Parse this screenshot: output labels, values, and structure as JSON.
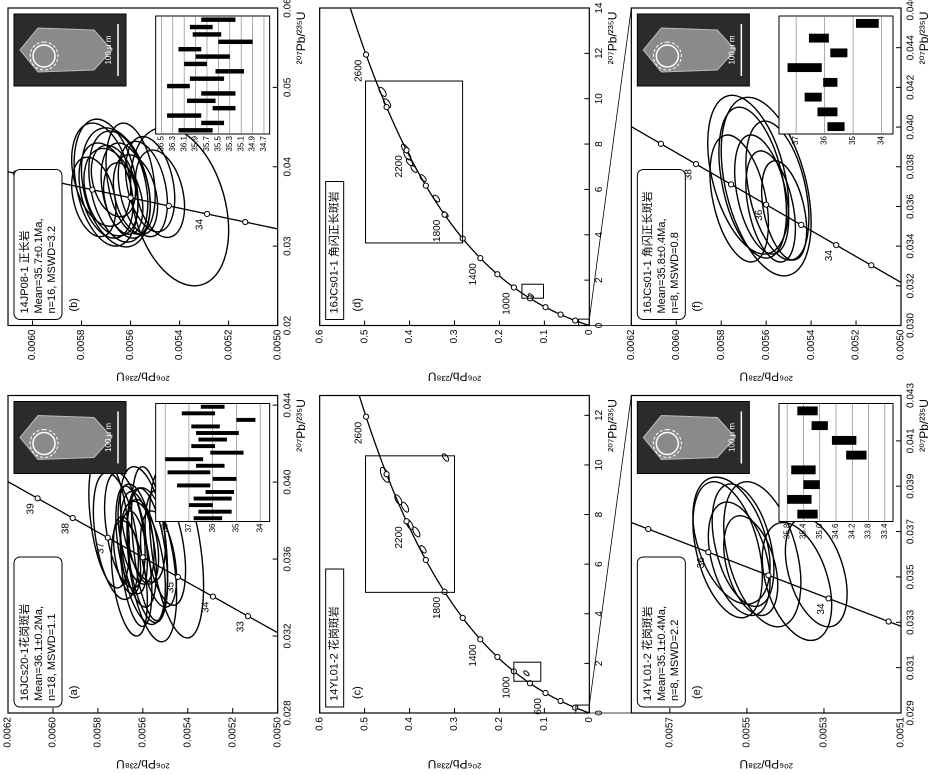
{
  "chart_data": [
    {
      "type": "concordia",
      "panel_label": "(a)",
      "sample": "16JCs20-1花岗斑岩",
      "result": [
        "Mean=36.1±0.2Ma,",
        "n=18, MSWD=1.1"
      ],
      "x_label": "²⁰⁷Pb/²³⁵U",
      "y_label": "²⁰⁶Pb/²³⁸U",
      "xlim": [
        0.028,
        0.0445
      ],
      "xticks": [
        0.028,
        0.032,
        0.036,
        {
          "value": 0.04,
          "label": "0.040"
        },
        0.044
      ],
      "ylim": [
        0.005,
        0.0062
      ],
      "yticks": [
        {
          "value": 0.005,
          "label": "0.0050"
        },
        0.0052,
        0.0054,
        0.0056,
        0.0058,
        {
          "value": 0.006,
          "label": "0.0060"
        },
        0.0062
      ],
      "concordia_markers": [
        33,
        34,
        35,
        36,
        37,
        38,
        39
      ],
      "concordia_labels": [
        33,
        34,
        35,
        37,
        38,
        39
      ],
      "ellipses": [
        {
          "x": 0.0365,
          "y": 0.00562,
          "x_err": 0.003,
          "y_err": 8e-05,
          "rho": 0.4
        },
        {
          "x": 0.0362,
          "y": 0.00558,
          "x_err": 0.0035,
          "y_err": 9e-05,
          "rho": 0.4
        },
        {
          "x": 0.037,
          "y": 0.00565,
          "x_err": 0.0028,
          "y_err": 7e-05,
          "rho": 0.4
        },
        {
          "x": 0.0358,
          "y": 0.0056,
          "x_err": 0.0032,
          "y_err": 0.0001,
          "rho": 0.4
        },
        {
          "x": 0.0368,
          "y": 0.00557,
          "x_err": 0.004,
          "y_err": 8e-05,
          "rho": 0.4
        },
        {
          "x": 0.0375,
          "y": 0.00568,
          "x_err": 0.003,
          "y_err": 9e-05,
          "rho": 0.4
        },
        {
          "x": 0.036,
          "y": 0.00553,
          "x_err": 0.0025,
          "y_err": 8e-05,
          "rho": 0.4
        },
        {
          "x": 0.0372,
          "y": 0.00572,
          "x_err": 0.0033,
          "y_err": 0.0001,
          "rho": 0.4
        },
        {
          "x": 0.0355,
          "y": 0.00563,
          "x_err": 0.003,
          "y_err": 7e-05,
          "rho": 0.4
        },
        {
          "x": 0.038,
          "y": 0.00575,
          "x_err": 0.0035,
          "y_err": 9e-05,
          "rho": 0.4
        },
        {
          "x": 0.0366,
          "y": 0.0055,
          "x_err": 0.003,
          "y_err": 9e-05,
          "rho": 0.4
        },
        {
          "x": 0.0362,
          "y": 0.00567,
          "x_err": 0.002,
          "y_err": 6e-05,
          "rho": 0.4
        },
        {
          "x": 0.0369,
          "y": 0.0056,
          "x_err": 0.0022,
          "y_err": 7e-05,
          "rho": 0.4
        },
        {
          "x": 0.0357,
          "y": 0.00556,
          "x_err": 0.004,
          "y_err": 0.00011,
          "rho": 0.4
        },
        {
          "x": 0.0373,
          "y": 0.00563,
          "x_err": 0.0026,
          "y_err": 8e-05,
          "rho": 0.4
        },
        {
          "x": 0.0364,
          "y": 0.00545,
          "x_err": 0.0045,
          "y_err": 0.00012,
          "rho": 0.4
        },
        {
          "x": 0.035,
          "y": 0.00566,
          "x_err": 0.003,
          "y_err": 8e-05,
          "rho": 0.4
        },
        {
          "x": 0.0378,
          "y": 0.0056,
          "x_err": 0.003,
          "y_err": 0.0001,
          "rho": 0.4
        }
      ],
      "scale_label": "100 μ m",
      "inset": {
        "ylim": [
          33.6,
          38.4
        ],
        "yticks": [
          34,
          35,
          36,
          37,
          38
        ],
        "ages": [
          36.2,
          35.9,
          36.5,
          36.0,
          35.7,
          36.8,
          35.5,
          37.0,
          36.1,
          37.2,
          35.4,
          36.4,
          36.0,
          35.8,
          36.3,
          34.6,
          36.6,
          36.0
        ],
        "errors": [
          0.6,
          0.7,
          0.5,
          0.8,
          0.6,
          0.7,
          0.5,
          0.9,
          0.6,
          0.8,
          0.7,
          0.5,
          0.6,
          0.9,
          0.6,
          0.4,
          0.7,
          0.5
        ]
      }
    },
    {
      "type": "concordia",
      "panel_label": "(b)",
      "sample": "14JP08-1 正长岩",
      "result": [
        "Mean=35.7±0.1Ma,",
        "n=16, MSWD=3.2"
      ],
      "x_label": "²⁰⁷Pb/²³⁵U",
      "y_label": "²⁰⁶Pb/²³⁸U",
      "xlim": [
        0.02,
        0.06
      ],
      "xticks": [
        0.02,
        0.03,
        0.04,
        0.05,
        0.06
      ],
      "ylim": [
        0.005,
        0.0061
      ],
      "yticks": [
        {
          "value": 0.005,
          "label": "0.0050"
        },
        0.0052,
        0.0054,
        0.0056,
        0.0058,
        {
          "value": 0.006,
          "label": "0.0060"
        }
      ],
      "concordia_markers": [
        33,
        34,
        35,
        36,
        37,
        38,
        39
      ],
      "concordia_labels": [
        34,
        38
      ],
      "ellipses": [
        {
          "x": 0.037,
          "y": 0.00562,
          "x_err": 0.006,
          "y_err": 0.0001,
          "rho": 0.3
        },
        {
          "x": 0.0375,
          "y": 0.00565,
          "x_err": 0.007,
          "y_err": 0.00012,
          "rho": 0.3
        },
        {
          "x": 0.0365,
          "y": 0.00558,
          "x_err": 0.005,
          "y_err": 9e-05,
          "rho": 0.3
        },
        {
          "x": 0.038,
          "y": 0.0057,
          "x_err": 0.008,
          "y_err": 0.00013,
          "rho": 0.3
        },
        {
          "x": 0.0372,
          "y": 0.00555,
          "x_err": 0.006,
          "y_err": 0.0001,
          "rho": 0.3
        },
        {
          "x": 0.0368,
          "y": 0.00568,
          "x_err": 0.0055,
          "y_err": 0.00011,
          "rho": 0.3
        },
        {
          "x": 0.0385,
          "y": 0.0056,
          "x_err": 0.007,
          "y_err": 0.0001,
          "rho": 0.3
        },
        {
          "x": 0.036,
          "y": 0.00563,
          "x_err": 0.0045,
          "y_err": 8e-05,
          "rho": 0.3
        },
        {
          "x": 0.039,
          "y": 0.00572,
          "x_err": 0.0065,
          "y_err": 0.00012,
          "rho": 0.3
        },
        {
          "x": 0.0378,
          "y": 0.00552,
          "x_err": 0.006,
          "y_err": 0.0001,
          "rho": 0.3
        },
        {
          "x": 0.0362,
          "y": 0.00575,
          "x_err": 0.005,
          "y_err": 9e-05,
          "rho": 0.3
        },
        {
          "x": 0.0374,
          "y": 0.00566,
          "x_err": 0.0075,
          "y_err": 0.00014,
          "rho": 0.3
        },
        {
          "x": 0.0366,
          "y": 0.00548,
          "x_err": 0.0055,
          "y_err": 0.0001,
          "rho": 0.3
        },
        {
          "x": 0.0382,
          "y": 0.00567,
          "x_err": 0.0045,
          "y_err": 9e-05,
          "rho": 0.3
        },
        {
          "x": 0.037,
          "y": 0.0057,
          "x_err": 0.006,
          "y_err": 0.00011,
          "rho": 0.3
        },
        {
          "x": 0.035,
          "y": 0.0054,
          "x_err": 0.01,
          "y_err": 0.0002,
          "rho": 0.3
        }
      ],
      "scale_label": "100 μ m",
      "inset": {
        "ylim": [
          34.6,
          36.6
        ],
        "yticks": [
          34.7,
          34.9,
          35.1,
          35.3,
          35.5,
          35.7,
          35.9,
          36.1,
          36.3,
          36.5
        ],
        "ages": [
          35.9,
          35.6,
          36.1,
          35.4,
          35.8,
          35.5,
          36.2,
          35.7,
          35.3,
          35.9,
          35.6,
          36.0,
          35.2,
          35.7,
          35.8,
          35.5
        ],
        "errors": [
          0.3,
          0.2,
          0.3,
          0.2,
          0.25,
          0.3,
          0.2,
          0.3,
          0.25,
          0.2,
          0.3,
          0.2,
          0.3,
          0.25,
          0.2,
          0.3
        ]
      }
    },
    {
      "type": "concordia",
      "panel_label": "(c)",
      "sample": "14YL01-2 花岗斑岩",
      "x_label": "²⁰⁷Pb/²³⁵U",
      "y_label": "²⁰⁶Pb/²³⁸U",
      "xlim": [
        0,
        12.8
      ],
      "xticks": [
        0,
        2,
        4,
        6,
        8,
        10,
        12
      ],
      "ylim": [
        0,
        0.6
      ],
      "yticks": [
        0,
        0.1,
        0.2,
        0.3,
        0.4,
        0.5,
        0.6
      ],
      "concordia_markers": [
        200,
        400,
        600,
        800,
        1000,
        1200,
        1400,
        1600,
        1800,
        2000,
        2200,
        2400,
        2600
      ],
      "concordia_labels": [
        600,
        1000,
        1400,
        1800,
        2200,
        2600
      ],
      "ellipses": [
        {
          "x": 9.6,
          "y": 0.455,
          "x_err": 0.3,
          "y_err": 0.01,
          "rho": 0.6
        },
        {
          "x": 8.6,
          "y": 0.425,
          "x_err": 0.2,
          "y_err": 0.008,
          "rho": 0.6
        },
        {
          "x": 8.3,
          "y": 0.41,
          "x_err": 0.2,
          "y_err": 0.008,
          "rho": 0.6
        },
        {
          "x": 7.6,
          "y": 0.4,
          "x_err": 0.2,
          "y_err": 0.008,
          "rho": 0.6
        },
        {
          "x": 7.3,
          "y": 0.385,
          "x_err": 0.2,
          "y_err": 0.008,
          "rho": 0.6
        },
        {
          "x": 6.6,
          "y": 0.37,
          "x_err": 0.15,
          "y_err": 0.007,
          "rho": 0.6
        },
        {
          "x": 10.3,
          "y": 0.32,
          "x_err": 0.15,
          "y_err": 0.007,
          "rho": 0.6
        },
        {
          "x": 1.6,
          "y": 0.14,
          "x_err": 0.1,
          "y_err": 0.006,
          "rho": 0.6
        }
      ]
    },
    {
      "type": "concordia",
      "panel_label": "(d)",
      "sample": "16JCs01-1 角闪正长斑岩",
      "x_label": "²⁰⁷Pb/²³⁵U",
      "y_label": "²⁰⁶Pb/²³⁸U",
      "xlim": [
        0,
        14
      ],
      "xticks": [
        0,
        2,
        4,
        6,
        8,
        10,
        12,
        14
      ],
      "ylim": [
        0,
        0.6
      ],
      "yticks": [
        0,
        0.1,
        0.2,
        0.3,
        0.4,
        0.5,
        0.6
      ],
      "concordia_markers": [
        200,
        400,
        600,
        800,
        1000,
        1200,
        1400,
        1600,
        1800,
        2000,
        2200,
        2400,
        2600
      ],
      "concordia_labels": [
        1000,
        1400,
        1800,
        2200,
        2600
      ],
      "ellipses": [
        {
          "x": 10.3,
          "y": 0.46,
          "x_err": 0.2,
          "y_err": 0.008,
          "rho": 0.6
        },
        {
          "x": 9.8,
          "y": 0.45,
          "x_err": 0.2,
          "y_err": 0.008,
          "rho": 0.6
        },
        {
          "x": 7.8,
          "y": 0.41,
          "x_err": 0.2,
          "y_err": 0.008,
          "rho": 0.6
        },
        {
          "x": 7.5,
          "y": 0.405,
          "x_err": 0.2,
          "y_err": 0.008,
          "rho": 0.6
        },
        {
          "x": 7.2,
          "y": 0.4,
          "x_err": 0.15,
          "y_err": 0.007,
          "rho": 0.6
        },
        {
          "x": 6.9,
          "y": 0.39,
          "x_err": 0.15,
          "y_err": 0.007,
          "rho": 0.6
        },
        {
          "x": 6.5,
          "y": 0.37,
          "x_err": 0.15,
          "y_err": 0.007,
          "rho": 0.6
        },
        {
          "x": 5.6,
          "y": 0.34,
          "x_err": 0.15,
          "y_err": 0.007,
          "rho": 0.6
        },
        {
          "x": 4.9,
          "y": 0.32,
          "x_err": 0.12,
          "y_err": 0.006,
          "rho": 0.6
        },
        {
          "x": 1.3,
          "y": 0.13,
          "x_err": 0.1,
          "y_err": 0.006,
          "rho": 0.6
        }
      ]
    },
    {
      "type": "concordia",
      "panel_label": "(e)",
      "sample": "14YL01-2 花岗斑岩",
      "result": [
        "Mean=35.1±0.4Ma,",
        "n=8, MSWD=2.2"
      ],
      "x_label": "²⁰⁷Pb/²³⁵U",
      "y_label": "²⁰⁶Pb/²³⁸U",
      "xlim": [
        0.029,
        0.043
      ],
      "xticks": [
        0.029,
        0.031,
        0.033,
        0.035,
        0.037,
        0.039,
        0.041,
        0.043
      ],
      "ylim": [
        0.0051,
        0.0058
      ],
      "yticks": [
        0.0051,
        0.0053,
        0.0055,
        0.0057
      ],
      "concordia_markers": [
        33,
        34,
        35,
        36,
        37
      ],
      "concordia_labels": [
        34,
        36
      ],
      "ellipses": [
        {
          "x": 0.0358,
          "y": 0.00552,
          "x_err": 0.0025,
          "y_err": 8e-05,
          "rho": 0.4
        },
        {
          "x": 0.0362,
          "y": 0.00555,
          "x_err": 0.003,
          "y_err": 9e-05,
          "rho": 0.4
        },
        {
          "x": 0.0355,
          "y": 0.00549,
          "x_err": 0.0022,
          "y_err": 7e-05,
          "rho": 0.4
        },
        {
          "x": 0.0366,
          "y": 0.00554,
          "x_err": 0.0028,
          "y_err": 0.0001,
          "rho": 0.4
        },
        {
          "x": 0.0352,
          "y": 0.00532,
          "x_err": 0.0024,
          "y_err": 8e-05,
          "rho": 0.4
        },
        {
          "x": 0.0348,
          "y": 0.00537,
          "x_err": 0.0026,
          "y_err": 9e-05,
          "rho": 0.4
        },
        {
          "x": 0.036,
          "y": 0.00546,
          "x_err": 0.0032,
          "y_err": 0.0001,
          "rho": 0.4
        },
        {
          "x": 0.0364,
          "y": 0.00551,
          "x_err": 0.0027,
          "y_err": 8e-05,
          "rho": 0.4
        }
      ],
      "scale_label": "100 μ m",
      "inset": {
        "ylim": [
          33.2,
          36.0
        ],
        "yticks": [
          33.4,
          33.8,
          34.2,
          34.6,
          {
            "value": 35,
            "label": "35.0"
          },
          35.4,
          35.8
        ],
        "ages": [
          35.3,
          35.5,
          35.2,
          35.4,
          34.1,
          34.4,
          35.0,
          35.3
        ],
        "errors": [
          0.25,
          0.3,
          0.2,
          0.3,
          0.25,
          0.3,
          0.2,
          0.25
        ]
      }
    },
    {
      "type": "concordia",
      "panel_label": "(f)",
      "sample": "16JCs01-1 角闪正长斑岩",
      "result": [
        "Mean=35.8±0.4Ma,",
        "n=8, MSWD=0.8"
      ],
      "x_label": "²⁰⁷Pb/²³⁵U",
      "y_label": "²⁰⁶Pb/²³⁸U",
      "xlim": [
        0.03,
        0.046
      ],
      "xticks": [
        {
          "value": 0.03,
          "label": "0.030"
        },
        0.032,
        0.034,
        0.036,
        0.038,
        {
          "value": 0.04,
          "label": "0.040"
        },
        0.042,
        0.044,
        0.046
      ],
      "ylim": [
        0.005,
        0.0062
      ],
      "yticks": [
        {
          "value": 0.005,
          "label": "0.0050"
        },
        0.0052,
        0.0054,
        0.0056,
        0.0058,
        {
          "value": 0.006,
          "label": "0.0060"
        },
        0.0062
      ],
      "concordia_markers": [
        33,
        34,
        35,
        36,
        37,
        38,
        39
      ],
      "concordia_labels": [
        34,
        36,
        38
      ],
      "ellipses": [
        {
          "x": 0.0366,
          "y": 0.00562,
          "x_err": 0.003,
          "y_err": 0.00012,
          "rho": 0.4
        },
        {
          "x": 0.0372,
          "y": 0.00566,
          "x_err": 0.0038,
          "y_err": 0.00015,
          "rho": 0.4
        },
        {
          "x": 0.036,
          "y": 0.00558,
          "x_err": 0.0028,
          "y_err": 0.00011,
          "rho": 0.4
        },
        {
          "x": 0.0368,
          "y": 0.00555,
          "x_err": 0.0035,
          "y_err": 0.00014,
          "rho": 0.4
        },
        {
          "x": 0.0376,
          "y": 0.00568,
          "x_err": 0.004,
          "y_err": 0.00018,
          "rho": 0.4
        },
        {
          "x": 0.0358,
          "y": 0.00552,
          "x_err": 0.0025,
          "y_err": 0.0001,
          "rho": 0.4
        },
        {
          "x": 0.0364,
          "y": 0.00572,
          "x_err": 0.0032,
          "y_err": 0.00013,
          "rho": 0.4
        },
        {
          "x": 0.037,
          "y": 0.0056,
          "x_err": 0.0045,
          "y_err": 0.0002,
          "rho": 0.4
        }
      ],
      "scale_label": "100 μ m",
      "inset": {
        "ylim": [
          33.6,
          37.6
        ],
        "yticks": [
          34,
          35,
          36,
          37
        ],
        "ages": [
          35.6,
          35.9,
          36.4,
          35.8,
          36.7,
          35.5,
          36.2,
          34.5
        ],
        "errors": [
          0.3,
          0.35,
          0.3,
          0.25,
          0.6,
          0.3,
          0.35,
          0.4
        ]
      }
    }
  ]
}
